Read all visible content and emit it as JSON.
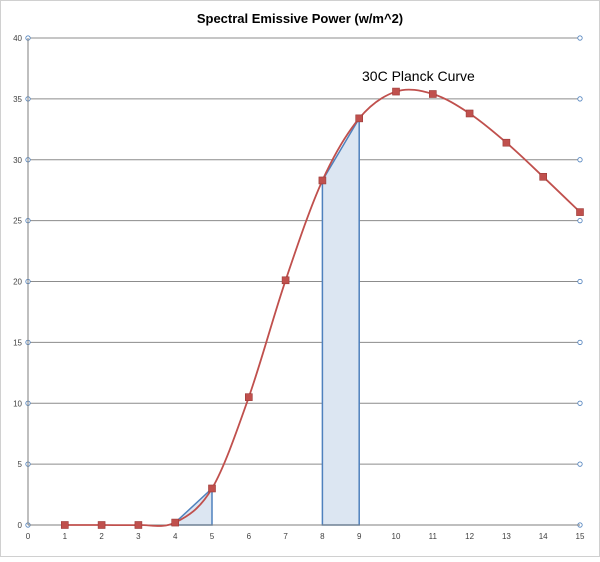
{
  "chart_data": {
    "type": "line",
    "title": "Spectral Emissive Power (w/m^2)",
    "annotation": "30C Planck Curve",
    "xlabel": "",
    "ylabel": "",
    "xlim": [
      0,
      15
    ],
    "ylim": [
      0,
      40
    ],
    "x_ticks": [
      0,
      1,
      2,
      3,
      4,
      5,
      6,
      7,
      8,
      9,
      10,
      11,
      12,
      13,
      14,
      15
    ],
    "y_ticks": [
      0,
      5,
      10,
      15,
      20,
      25,
      30,
      35,
      40
    ],
    "grid": true,
    "legend": "none",
    "series": [
      {
        "x": [
          1,
          2,
          3,
          4,
          5,
          6,
          7,
          8,
          9,
          10,
          11,
          12,
          13,
          14,
          15
        ],
        "y": [
          0.0,
          0.0,
          0.0,
          0.2,
          3.0,
          10.5,
          20.1,
          28.3,
          33.4,
          35.6,
          35.4,
          33.8,
          31.4,
          28.6,
          25.7
        ],
        "color": "#c0504d"
      }
    ],
    "shaded_regions": [
      {
        "x_from": 4,
        "x_to": 5,
        "fill": "#dce6f2",
        "stroke": "#4f81bd"
      },
      {
        "x_from": 8,
        "x_to": 9,
        "fill": "#dce6f2",
        "stroke": "#4f81bd"
      }
    ],
    "colors": {
      "gridline": "#8c8c8c",
      "axis": "#7f7f7f",
      "curve": "#c0504d",
      "marker": "#c0504d"
    }
  }
}
